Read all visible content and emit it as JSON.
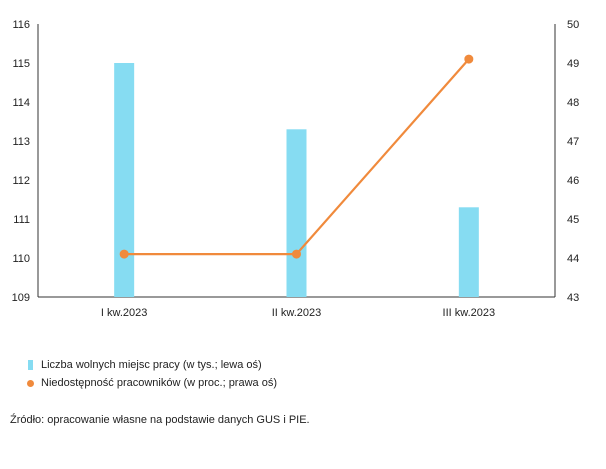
{
  "chart_data": {
    "type": "bar",
    "categories": [
      "I kw.2023",
      "II kw.2023",
      "III kw.2023"
    ],
    "series": [
      {
        "name": "Liczba wolnych miejsc pracy (w tys.; lewa oś)",
        "type": "bar",
        "axis": "left",
        "color": "#86dcf2",
        "values": [
          115.0,
          113.3,
          111.3
        ]
      },
      {
        "name": "Niedostępność pracowników (w proc.; prawa oś)",
        "type": "line",
        "axis": "right",
        "color": "#f08a3c",
        "values": [
          44.1,
          44.1,
          49.1
        ]
      }
    ],
    "left_axis": {
      "ylim": [
        109,
        116
      ],
      "ticks": [
        "109",
        "110",
        "111",
        "112",
        "113",
        "114",
        "115",
        "116"
      ]
    },
    "right_axis": {
      "ylim": [
        43,
        50
      ],
      "ticks": [
        "43",
        "44",
        "45",
        "46",
        "47",
        "48",
        "49",
        "50"
      ]
    },
    "grid": false,
    "legend_position": "bottom-left"
  },
  "legend": [
    {
      "label": "Liczba wolnych miejsc pracy (w tys.; lewa oś)",
      "color": "#86dcf2"
    },
    {
      "label": "Niedostępność pracowników (w proc.; prawa oś)",
      "color": "#f08a3c"
    }
  ],
  "source": "Źródło: opracowanie własne na podstawie danych GUS i PIE."
}
